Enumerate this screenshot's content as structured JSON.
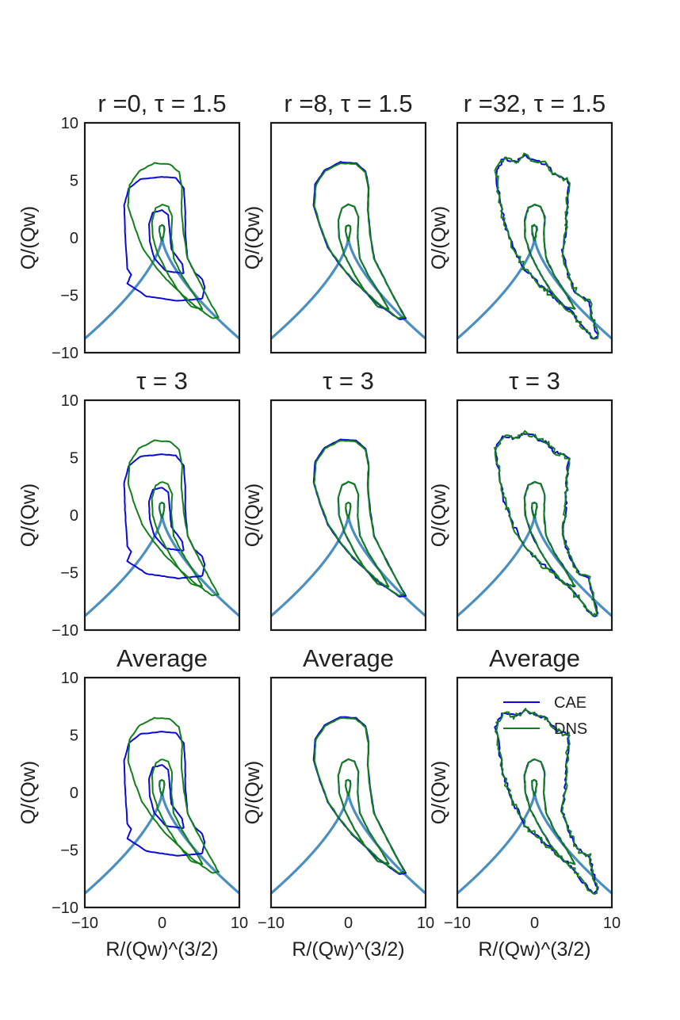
{
  "chart_data": {
    "type": "line",
    "grid_rows": 3,
    "grid_cols": 3,
    "x_label": "R/(Qw)^(3/2)",
    "y_label": "Q/(Qw)",
    "xlim": [
      -10,
      10
    ],
    "ylim": [
      -10,
      10
    ],
    "xticks": [
      "−10",
      "0",
      "10"
    ],
    "yticks": [
      "10",
      "5",
      "0",
      "−5",
      "−10"
    ],
    "colors": {
      "cae": "#0a0adc",
      "dns": "#12801a",
      "vieillefosse": "#4a8fbf"
    },
    "legend": {
      "placement": "top-right",
      "entries": [
        "CAE",
        "DNS"
      ]
    },
    "panels": [
      {
        "title": "r =0, τ = 1.5",
        "match": "poor"
      },
      {
        "title": "r =8, τ = 1.5",
        "match": "good"
      },
      {
        "title": "r =32, τ = 1.5",
        "match": "noisy"
      },
      {
        "title": "τ = 3",
        "match": "poor"
      },
      {
        "title": "τ = 3",
        "match": "good"
      },
      {
        "title": "τ = 3",
        "match": "noisy"
      },
      {
        "title": "Average",
        "match": "poor"
      },
      {
        "title": "Average",
        "match": "good"
      },
      {
        "title": "Average",
        "match": "noisy"
      }
    ],
    "series": [
      {
        "name": "Vieillefosse tail",
        "formula": "Q = -(27/4)^(1/3) * |R|^(2/3)"
      },
      {
        "name": "DNS",
        "contours": [
          [
            [
              0,
              -0.3
            ],
            [
              0.15,
              0.1
            ],
            [
              0.3,
              0.7
            ],
            [
              0.25,
              1.0
            ],
            [
              0,
              1.1
            ],
            [
              -0.3,
              1.0
            ],
            [
              -0.35,
              0.6
            ],
            [
              -0.2,
              0.1
            ],
            [
              0,
              -0.3
            ]
          ],
          [
            [
              3.8,
              -6.0
            ],
            [
              2.0,
              -4.5
            ],
            [
              0.8,
              -3.2
            ],
            [
              -0.5,
              -1.5
            ],
            [
              -1.2,
              0.0
            ],
            [
              -1.3,
              1.5
            ],
            [
              -0.8,
              2.6
            ],
            [
              0,
              2.9
            ],
            [
              0.8,
              2.7
            ],
            [
              1.3,
              1.8
            ],
            [
              1.2,
              0.0
            ],
            [
              1.5,
              -1.8
            ],
            [
              2.6,
              -3.3
            ],
            [
              4.2,
              -5.0
            ],
            [
              5.2,
              -6.2
            ],
            [
              3.8,
              -6.0
            ]
          ],
          [
            [
              6.5,
              -7.0
            ],
            [
              4.0,
              -5.8
            ],
            [
              0.5,
              -3.6
            ],
            [
              -1.2,
              -2.2
            ],
            [
              -2.6,
              -0.8
            ],
            [
              -3.6,
              1.0
            ],
            [
              -4.4,
              2.8
            ],
            [
              -4.2,
              4.6
            ],
            [
              -3.0,
              5.8
            ],
            [
              -1.0,
              6.5
            ],
            [
              1.0,
              6.4
            ],
            [
              2.2,
              5.7
            ],
            [
              2.6,
              4.3
            ],
            [
              2.5,
              2.4
            ],
            [
              2.8,
              0.3
            ],
            [
              3.3,
              -1.8
            ],
            [
              4.8,
              -3.8
            ],
            [
              6.2,
              -5.6
            ],
            [
              7.3,
              -6.9
            ],
            [
              6.5,
              -7.0
            ]
          ]
        ]
      },
      {
        "name": "CAE",
        "contours": [
          [
            [
              0,
              -0.3
            ],
            [
              0.15,
              0.1
            ],
            [
              0.3,
              0.7
            ],
            [
              0.25,
              1.0
            ],
            [
              0,
              1.1
            ],
            [
              -0.3,
              1.0
            ],
            [
              -0.35,
              0.6
            ],
            [
              -0.2,
              0.1
            ],
            [
              0,
              -0.3
            ]
          ],
          [
            [
              2.8,
              -3.1
            ],
            [
              0.5,
              -2.9
            ],
            [
              -1.0,
              -1.8
            ],
            [
              -1.6,
              -0.3
            ],
            [
              -1.7,
              1.2
            ],
            [
              -1.2,
              2.2
            ],
            [
              0,
              2.4
            ],
            [
              0.8,
              2.0
            ],
            [
              1.0,
              0.5
            ],
            [
              1.2,
              -1.0
            ],
            [
              2.6,
              -2.3
            ],
            [
              2.8,
              -3.1
            ]
          ],
          [
            [
              5.2,
              -5.3
            ],
            [
              2.0,
              -5.5
            ],
            [
              -2.0,
              -5.1
            ],
            [
              -4.5,
              -4.0
            ],
            [
              -4.0,
              -3.2
            ],
            [
              -4.5,
              -2.7
            ],
            [
              -4.8,
              0.5
            ],
            [
              -4.9,
              2.8
            ],
            [
              -4.3,
              4.3
            ],
            [
              -2.8,
              5.1
            ],
            [
              0,
              5.3
            ],
            [
              1.8,
              5.2
            ],
            [
              2.8,
              4.3
            ],
            [
              3.0,
              2.5
            ],
            [
              3.0,
              0.5
            ],
            [
              3.3,
              -1.8
            ],
            [
              4.2,
              -3.0
            ],
            [
              5.2,
              -3.6
            ],
            [
              5.5,
              -4.3
            ],
            [
              5.2,
              -5.3
            ]
          ]
        ]
      }
    ]
  }
}
